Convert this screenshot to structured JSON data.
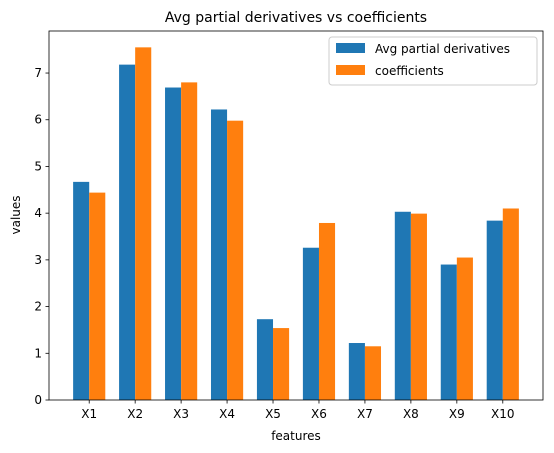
{
  "chart_data": {
    "type": "bar",
    "title": "Avg partial derivatives vs coefficients",
    "xlabel": "features",
    "ylabel": "values",
    "categories": [
      "X1",
      "X2",
      "X3",
      "X4",
      "X5",
      "X6",
      "X7",
      "X8",
      "X9",
      "X10"
    ],
    "series": [
      {
        "name": "Avg partial derivatives",
        "color": "#1f77b4",
        "values": [
          4.67,
          7.18,
          6.69,
          6.22,
          1.73,
          3.26,
          1.22,
          4.03,
          2.9,
          3.84
        ]
      },
      {
        "name": "coefficients",
        "color": "#ff7f0e",
        "values": [
          4.44,
          7.55,
          6.8,
          5.98,
          1.54,
          3.79,
          1.15,
          3.99,
          3.05,
          4.1
        ]
      }
    ],
    "ylim": [
      0,
      7.9
    ],
    "yticks": [
      0,
      1,
      2,
      3,
      4,
      5,
      6,
      7
    ],
    "grid": false,
    "legend_position": "top-right"
  }
}
